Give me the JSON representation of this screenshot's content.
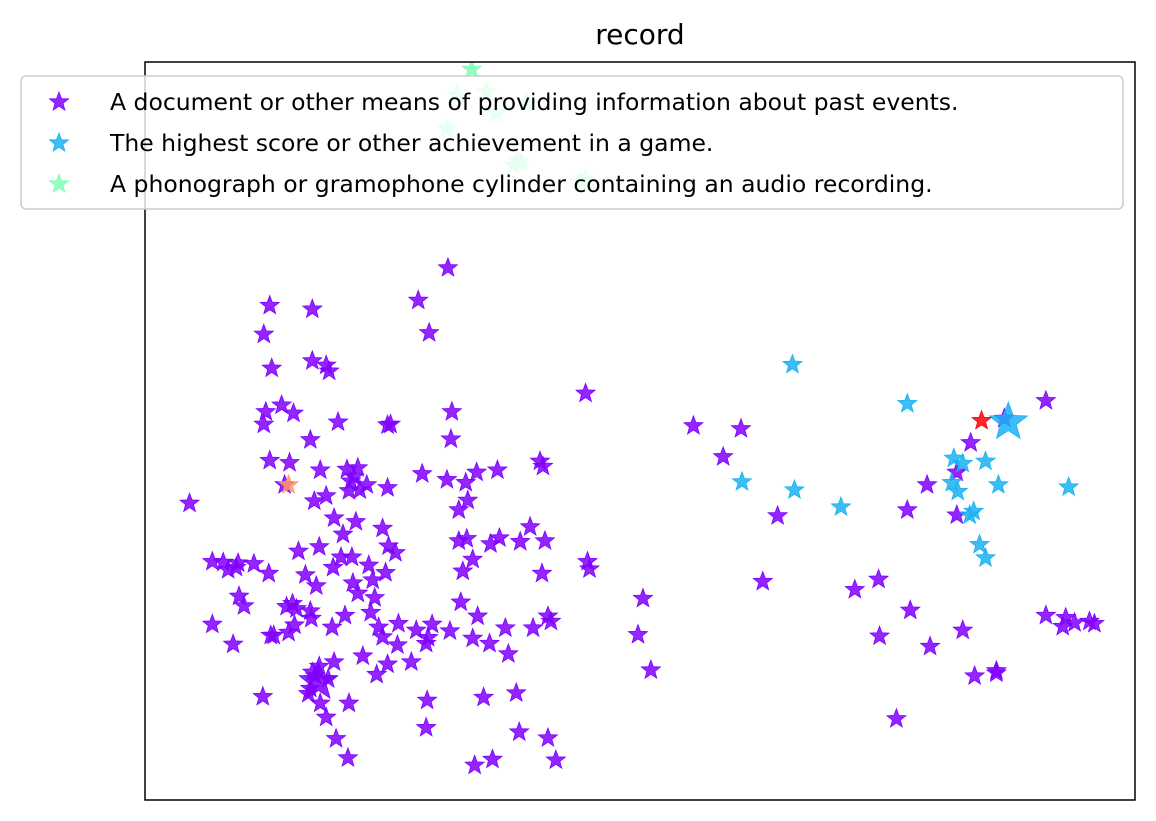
{
  "chart_data": {
    "type": "scatter",
    "title": "record",
    "xlabel": "",
    "ylabel": "",
    "xlim": [
      0,
      100
    ],
    "ylim": [
      0,
      100
    ],
    "grid": false,
    "ticks_visible": false,
    "marker": "star",
    "legend": {
      "placement": "upper-center"
    },
    "series": [
      {
        "name": "A document or other means of providing information about past events.",
        "color": "#8000ff",
        "highlight": {
          "x": 17.5,
          "y": 16.0,
          "large": true
        },
        "points": [
          [
            4.5,
            40.2
          ],
          [
            6.8,
            32.3
          ],
          [
            7.9,
            32.2
          ],
          [
            9.4,
            32.1
          ],
          [
            11.0,
            32.0
          ],
          [
            9.2,
            31.5
          ],
          [
            8.4,
            31.2
          ],
          [
            12.5,
            30.7
          ],
          [
            9.5,
            27.6
          ],
          [
            10.0,
            26.3
          ],
          [
            14.3,
            26.2
          ],
          [
            15.3,
            25.9
          ],
          [
            14.9,
            26.6
          ],
          [
            6.8,
            23.8
          ],
          [
            8.9,
            21.1
          ],
          [
            12.7,
            22.3
          ],
          [
            15.1,
            23.7
          ],
          [
            16.8,
            24.6
          ],
          [
            13.0,
            22.3
          ],
          [
            14.5,
            22.7
          ],
          [
            16.7,
            25.6
          ],
          [
            18.9,
            23.4
          ],
          [
            20.2,
            25.0
          ],
          [
            21.0,
            29.4
          ],
          [
            19.8,
            32.9
          ],
          [
            17.6,
            34.3
          ],
          [
            15.5,
            33.7
          ],
          [
            16.2,
            30.5
          ],
          [
            17.3,
            29.0
          ],
          [
            19.0,
            31.5
          ],
          [
            20.9,
            32.9
          ],
          [
            21.5,
            28.0
          ],
          [
            22.6,
            31.8
          ],
          [
            23.0,
            29.8
          ],
          [
            20.0,
            36.0
          ],
          [
            21.3,
            37.7
          ],
          [
            19.1,
            38.2
          ],
          [
            17.1,
            40.5
          ],
          [
            18.3,
            41.2
          ],
          [
            20.6,
            41.9
          ],
          [
            21.7,
            42.0
          ],
          [
            20.8,
            43.2
          ],
          [
            21.5,
            45.0
          ],
          [
            22.4,
            42.7
          ],
          [
            24.5,
            42.3
          ],
          [
            24.0,
            36.8
          ],
          [
            24.6,
            34.4
          ],
          [
            25.3,
            33.5
          ],
          [
            24.3,
            30.8
          ],
          [
            23.2,
            27.4
          ],
          [
            22.8,
            25.4
          ],
          [
            23.6,
            23.4
          ],
          [
            24.0,
            22.1
          ],
          [
            25.6,
            23.9
          ],
          [
            22.0,
            19.5
          ],
          [
            23.4,
            17.0
          ],
          [
            24.5,
            18.4
          ],
          [
            25.5,
            21.0
          ],
          [
            27.4,
            23.0
          ],
          [
            28.6,
            22.0
          ],
          [
            19.1,
            18.7
          ],
          [
            17.6,
            18.1
          ],
          [
            16.9,
            17.3
          ],
          [
            16.7,
            15.1
          ],
          [
            18.5,
            16.4
          ],
          [
            17.2,
            16.8
          ],
          [
            16.5,
            14.4
          ],
          [
            17.7,
            13.1
          ],
          [
            18.3,
            11.2
          ],
          [
            20.6,
            13.1
          ],
          [
            19.3,
            8.3
          ],
          [
            20.5,
            5.7
          ],
          [
            11.9,
            14.0
          ],
          [
            26.9,
            18.7
          ],
          [
            28.4,
            21.2
          ],
          [
            29.0,
            23.8
          ],
          [
            30.8,
            22.9
          ],
          [
            33.1,
            21.9
          ],
          [
            34.8,
            21.2
          ],
          [
            36.7,
            19.8
          ],
          [
            31.9,
            26.8
          ],
          [
            32.1,
            31.0
          ],
          [
            33.1,
            32.6
          ],
          [
            31.7,
            35.1
          ],
          [
            31.7,
            39.3
          ],
          [
            32.6,
            40.6
          ],
          [
            30.5,
            43.4
          ],
          [
            28.0,
            44.2
          ],
          [
            30.9,
            48.9
          ],
          [
            32.4,
            43.0
          ],
          [
            33.5,
            44.4
          ],
          [
            35.6,
            44.7
          ],
          [
            39.9,
            45.9
          ],
          [
            40.2,
            45.2
          ],
          [
            31.0,
            52.6
          ],
          [
            35.8,
            35.5
          ],
          [
            37.9,
            35.0
          ],
          [
            38.9,
            37.0
          ],
          [
            32.5,
            35.4
          ],
          [
            34.9,
            34.7
          ],
          [
            39.2,
            23.3
          ],
          [
            41.0,
            24.2
          ],
          [
            33.6,
            24.9
          ],
          [
            36.4,
            23.3
          ],
          [
            28.5,
            13.5
          ],
          [
            34.2,
            13.9
          ],
          [
            37.5,
            14.5
          ],
          [
            33.3,
            4.7
          ],
          [
            37.8,
            9.2
          ],
          [
            40.7,
            8.4
          ],
          [
            41.5,
            5.4
          ],
          [
            35.1,
            5.5
          ],
          [
            28.4,
            9.8
          ],
          [
            30.6,
            72.1
          ],
          [
            27.6,
            67.7
          ],
          [
            28.7,
            63.3
          ],
          [
            12.6,
            67.0
          ],
          [
            16.9,
            66.5
          ],
          [
            12.0,
            63.1
          ],
          [
            12.8,
            58.5
          ],
          [
            16.9,
            59.5
          ],
          [
            18.6,
            58.1
          ],
          [
            18.3,
            58.9
          ],
          [
            12.2,
            52.6
          ],
          [
            13.8,
            53.5
          ],
          [
            15.0,
            52.4
          ],
          [
            12.0,
            50.9
          ],
          [
            16.7,
            48.8
          ],
          [
            19.5,
            51.2
          ],
          [
            24.5,
            50.8
          ],
          [
            24.8,
            50.9
          ],
          [
            12.6,
            46.0
          ],
          [
            14.6,
            45.7
          ],
          [
            14.1,
            42.7
          ],
          [
            17.7,
            44.7
          ],
          [
            20.4,
            44.8
          ],
          [
            21.1,
            43.8
          ],
          [
            44.5,
            55.1
          ],
          [
            40.4,
            35.1
          ],
          [
            40.1,
            30.7
          ],
          [
            40.7,
            24.9
          ],
          [
            44.7,
            32.3
          ],
          [
            44.9,
            31.3
          ],
          [
            50.3,
            27.3
          ],
          [
            49.8,
            22.4
          ],
          [
            51.1,
            17.6
          ],
          [
            55.4,
            50.7
          ],
          [
            60.2,
            50.3
          ],
          [
            58.4,
            46.5
          ],
          [
            63.9,
            38.5
          ],
          [
            62.4,
            29.6
          ],
          [
            71.7,
            28.5
          ],
          [
            74.1,
            29.9
          ],
          [
            77.3,
            25.7
          ],
          [
            83.4,
            48.4
          ],
          [
            86.8,
            51.7
          ],
          [
            91.0,
            54.1
          ],
          [
            79.0,
            42.7
          ],
          [
            82.0,
            44.4
          ],
          [
            77.0,
            39.3
          ],
          [
            82.0,
            38.6
          ],
          [
            91.0,
            25.0
          ],
          [
            93.0,
            24.7
          ],
          [
            93.9,
            24.0
          ],
          [
            95.4,
            24.2
          ],
          [
            95.9,
            23.9
          ],
          [
            92.7,
            23.5
          ],
          [
            74.2,
            22.2
          ],
          [
            79.3,
            20.8
          ],
          [
            82.6,
            23.0
          ],
          [
            86.0,
            17.5
          ],
          [
            86.0,
            17.2
          ],
          [
            83.8,
            16.8
          ],
          [
            75.9,
            11.0
          ]
        ]
      },
      {
        "name": "The highest score or other achievement in a game.",
        "color": "#1ab2f2",
        "highlight": {
          "x": 87.2,
          "y": 51.2,
          "large": true
        },
        "points": [
          [
            65.4,
            59.0
          ],
          [
            77.0,
            53.7
          ],
          [
            60.3,
            43.1
          ],
          [
            65.6,
            42.0
          ],
          [
            70.3,
            39.7
          ],
          [
            81.7,
            46.3
          ],
          [
            82.6,
            45.6
          ],
          [
            84.9,
            45.9
          ],
          [
            81.5,
            43.0
          ],
          [
            82.1,
            41.8
          ],
          [
            86.2,
            42.7
          ],
          [
            83.7,
            39.1
          ],
          [
            83.3,
            38.6
          ],
          [
            93.3,
            42.4
          ],
          [
            84.3,
            34.6
          ],
          [
            84.9,
            32.8
          ]
        ]
      },
      {
        "name": "A phonograph or gramophone cylinder containing an audio recording.",
        "color": "#80ffb4",
        "points": [
          [
            33.0,
            99.0
          ],
          [
            31.5,
            95.5
          ],
          [
            30.5,
            91.0
          ],
          [
            34.5,
            96.0
          ],
          [
            35.5,
            93.0
          ],
          [
            38.5,
            94.5
          ],
          [
            37.6,
            86.6
          ],
          [
            37.2,
            86.0
          ],
          [
            38.0,
            86.4
          ],
          [
            44.5,
            84.2
          ],
          [
            44.0,
            83.8
          ]
        ]
      },
      {
        "name": "",
        "color": "#ff9966",
        "points": [
          [
            14.5,
            42.7
          ]
        ]
      },
      {
        "name": "",
        "color": "#ff0000",
        "points": [
          [
            84.5,
            51.4
          ]
        ]
      }
    ]
  }
}
